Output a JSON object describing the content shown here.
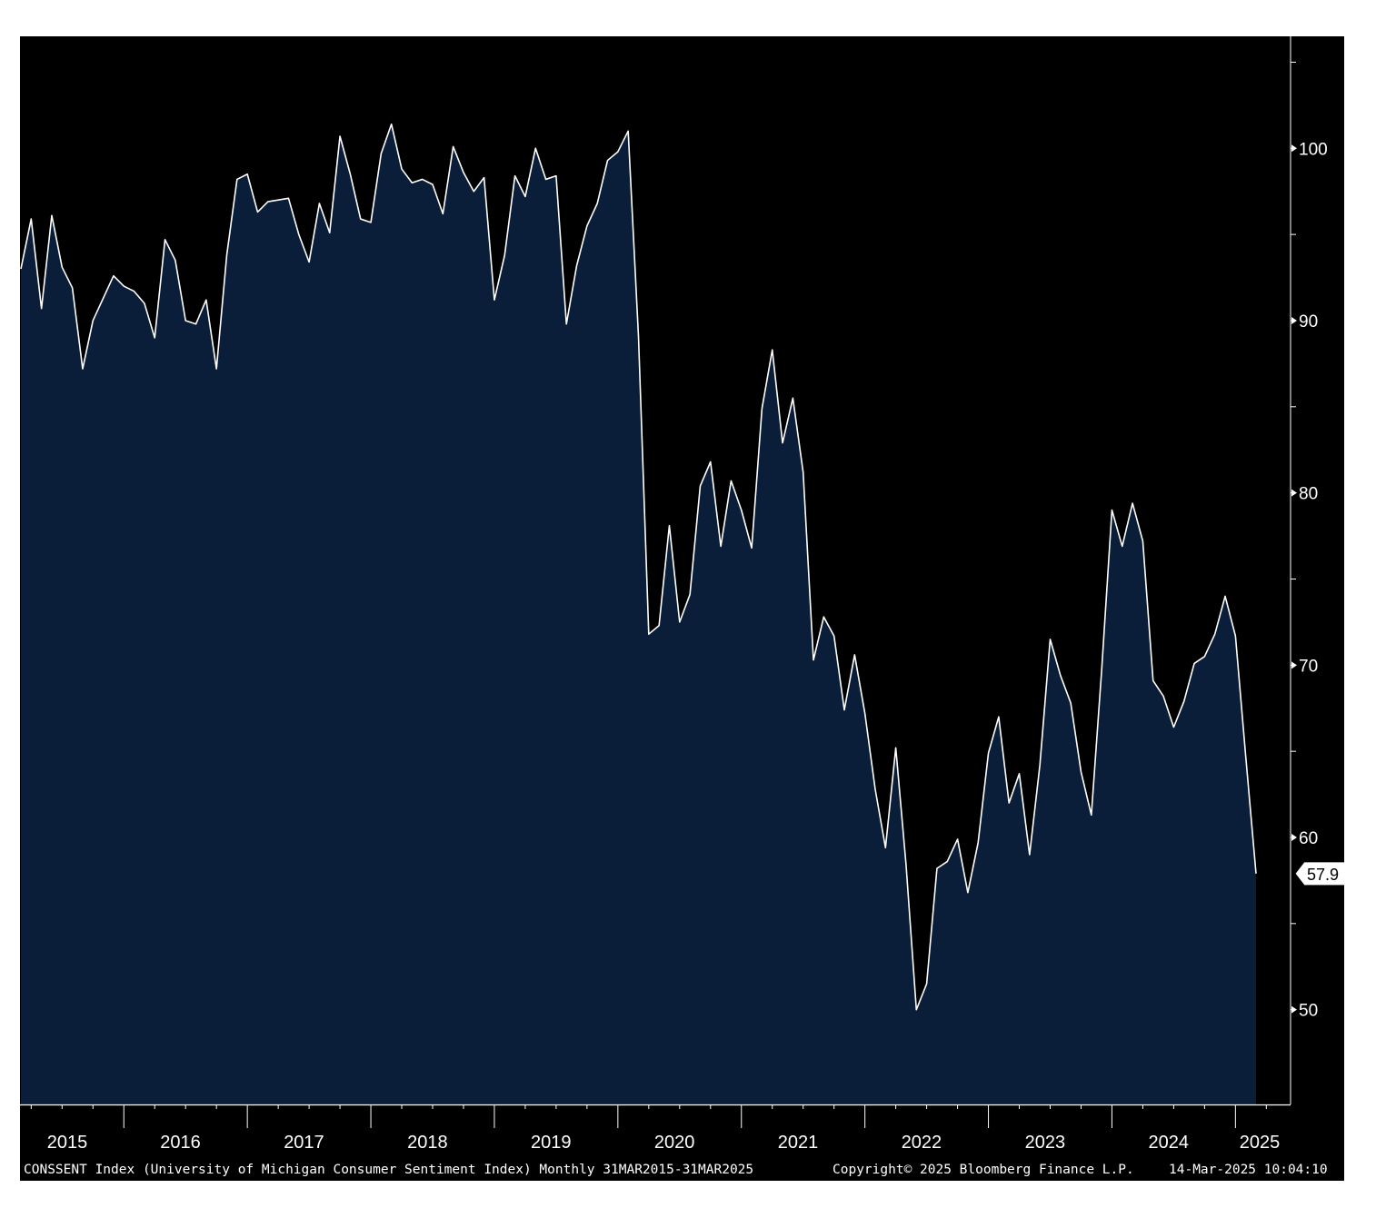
{
  "colors": {
    "background": "#000000",
    "fill": "#0a1e3a",
    "line": "#ffffff",
    "text": "#ffffff"
  },
  "footer": {
    "description": "CONSSENT Index (University of Michigan Consumer Sentiment Index)  Monthly 31MAR2015-31MAR2025",
    "copyright": "Copyright© 2025 Bloomberg Finance L.P.",
    "timestamp": "14-Mar-2025 10:04:10"
  },
  "last_value_label": "57.9",
  "chart_data": {
    "type": "area",
    "title": "",
    "xlabel": "",
    "ylabel": "",
    "x_start": "2015-03",
    "x_end": "2025-03",
    "frequency": "monthly",
    "ylim": [
      44.5,
      106.5
    ],
    "yticks": [
      50,
      60,
      70,
      80,
      90,
      100
    ],
    "xtick_labels": [
      "2015",
      "2016",
      "2017",
      "2018",
      "2019",
      "2020",
      "2021",
      "2022",
      "2023",
      "2024",
      "2025"
    ],
    "grid": false,
    "y_axis_side": "right",
    "values": [
      93.0,
      95.9,
      90.7,
      96.1,
      93.1,
      91.9,
      87.2,
      90.0,
      91.3,
      92.6,
      92.0,
      91.7,
      91.0,
      89.0,
      94.7,
      93.5,
      90.0,
      89.8,
      91.2,
      87.2,
      93.8,
      98.2,
      98.5,
      96.3,
      96.9,
      97.0,
      97.1,
      95.0,
      93.4,
      96.8,
      95.1,
      100.7,
      98.5,
      95.9,
      95.7,
      99.7,
      101.4,
      98.8,
      98.0,
      98.2,
      97.9,
      96.2,
      100.1,
      98.6,
      97.5,
      98.3,
      91.2,
      93.8,
      98.4,
      97.2,
      100.0,
      98.2,
      98.4,
      89.8,
      93.2,
      95.5,
      96.8,
      99.3,
      99.8,
      101.0,
      89.1,
      71.8,
      72.3,
      78.1,
      72.5,
      74.1,
      80.4,
      81.8,
      76.9,
      80.7,
      79.0,
      76.8,
      84.9,
      88.3,
      82.9,
      85.5,
      81.2,
      70.3,
      72.8,
      71.7,
      67.4,
      70.6,
      67.2,
      62.8,
      59.4,
      65.2,
      58.4,
      50.0,
      51.5,
      58.2,
      58.6,
      59.9,
      56.8,
      59.7,
      64.9,
      67.0,
      62.0,
      63.7,
      59.0,
      64.2,
      71.5,
      69.4,
      67.8,
      63.8,
      61.3,
      69.7,
      79.0,
      76.9,
      79.4,
      77.2,
      69.1,
      68.2,
      66.4,
      67.9,
      70.1,
      70.5,
      71.8,
      74.0,
      71.7,
      64.7,
      57.9
    ]
  }
}
